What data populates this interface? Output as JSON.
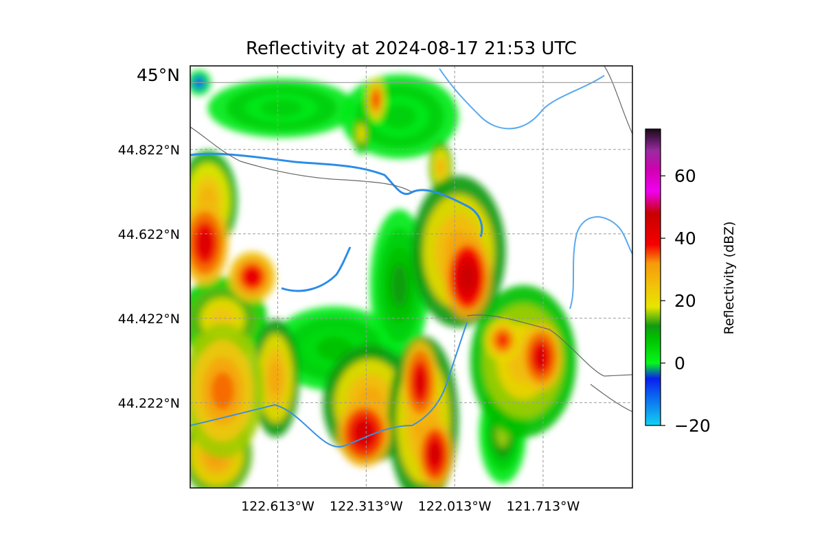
{
  "title": "Reflectivity at 2024-08-17 21:53 UTC",
  "map": {
    "lat_labels": [
      {
        "text": "45°N",
        "value": 45.0,
        "major": true
      },
      {
        "text": "44.822°N",
        "value": 44.822
      },
      {
        "text": "44.622°N",
        "value": 44.622
      },
      {
        "text": "44.422°N",
        "value": 44.422
      },
      {
        "text": "44.222°N",
        "value": 44.222
      }
    ],
    "lon_labels": [
      {
        "text": "122.613°W",
        "value": -122.613
      },
      {
        "text": "122.313°W",
        "value": -122.313
      },
      {
        "text": "122.013°W",
        "value": -122.013
      },
      {
        "text": "121.713°W",
        "value": -121.713
      }
    ],
    "extent": {
      "lon_min": -122.91,
      "lon_max": -121.41,
      "lat_min": 44.02,
      "lat_max": 45.02
    },
    "grid": true
  },
  "colorbar": {
    "label": "Reflectivity (dBZ)",
    "range": [
      -20,
      75
    ],
    "ticks": [
      {
        "text": "−20",
        "value": -20
      },
      {
        "text": "0",
        "value": 0
      },
      {
        "text": "20",
        "value": 20
      },
      {
        "text": "40",
        "value": 40
      },
      {
        "text": "60",
        "value": 60
      }
    ],
    "stops": [
      {
        "v": -20,
        "c": "#12d2f2"
      },
      {
        "v": -10,
        "c": "#0a5ef0"
      },
      {
        "v": -5,
        "c": "#0a1ef0"
      },
      {
        "v": 0,
        "c": "#06f71a"
      },
      {
        "v": 8,
        "c": "#00c000"
      },
      {
        "v": 12,
        "c": "#129b12"
      },
      {
        "v": 18,
        "c": "#e6e600"
      },
      {
        "v": 25,
        "c": "#f2c10a"
      },
      {
        "v": 32,
        "c": "#f59a0a"
      },
      {
        "v": 38,
        "c": "#f50000"
      },
      {
        "v": 48,
        "c": "#c80000"
      },
      {
        "v": 55,
        "c": "#f000f0"
      },
      {
        "v": 62,
        "c": "#d000b0"
      },
      {
        "v": 68,
        "c": "#9a2ba0"
      },
      {
        "v": 75,
        "c": "#1a0a1a"
      }
    ]
  },
  "reflectivity_cells": [
    {
      "lon": -122.86,
      "lat": 44.6,
      "dbz": 44,
      "rx": 0.08,
      "ry": 0.1
    },
    {
      "lon": -122.85,
      "lat": 44.7,
      "dbz": 28,
      "rx": 0.1,
      "ry": 0.12
    },
    {
      "lon": -122.7,
      "lat": 44.52,
      "dbz": 42,
      "rx": 0.08,
      "ry": 0.06
    },
    {
      "lon": -122.8,
      "lat": 44.42,
      "dbz": 24,
      "rx": 0.15,
      "ry": 0.1
    },
    {
      "lon": -122.8,
      "lat": 44.25,
      "dbz": 34,
      "rx": 0.14,
      "ry": 0.16
    },
    {
      "lon": -122.82,
      "lat": 44.1,
      "dbz": 32,
      "rx": 0.12,
      "ry": 0.1
    },
    {
      "lon": -122.62,
      "lat": 44.28,
      "dbz": 30,
      "rx": 0.08,
      "ry": 0.14
    },
    {
      "lon": -122.42,
      "lat": 44.35,
      "dbz": 8,
      "rx": 0.22,
      "ry": 0.1
    },
    {
      "lon": -122.32,
      "lat": 44.15,
      "dbz": 46,
      "rx": 0.09,
      "ry": 0.08
    },
    {
      "lon": -122.3,
      "lat": 44.22,
      "dbz": 30,
      "rx": 0.16,
      "ry": 0.14
    },
    {
      "lon": -122.13,
      "lat": 44.27,
      "dbz": 44,
      "rx": 0.06,
      "ry": 0.1
    },
    {
      "lon": -122.08,
      "lat": 44.1,
      "dbz": 46,
      "rx": 0.06,
      "ry": 0.08
    },
    {
      "lon": -122.12,
      "lat": 44.18,
      "dbz": 30,
      "rx": 0.12,
      "ry": 0.2
    },
    {
      "lon": -121.97,
      "lat": 44.52,
      "dbz": 48,
      "rx": 0.08,
      "ry": 0.1
    },
    {
      "lon": -122.0,
      "lat": 44.58,
      "dbz": 30,
      "rx": 0.16,
      "ry": 0.18
    },
    {
      "lon": -122.2,
      "lat": 44.5,
      "dbz": 12,
      "rx": 0.1,
      "ry": 0.18
    },
    {
      "lon": -121.72,
      "lat": 44.33,
      "dbz": 44,
      "rx": 0.07,
      "ry": 0.08
    },
    {
      "lon": -121.85,
      "lat": 44.37,
      "dbz": 38,
      "rx": 0.06,
      "ry": 0.05
    },
    {
      "lon": -121.78,
      "lat": 44.32,
      "dbz": 26,
      "rx": 0.18,
      "ry": 0.18
    },
    {
      "lon": -121.85,
      "lat": 44.15,
      "dbz": 16,
      "rx": 0.08,
      "ry": 0.12
    },
    {
      "lon": -122.06,
      "lat": 44.78,
      "dbz": 28,
      "rx": 0.04,
      "ry": 0.06
    },
    {
      "lon": -122.28,
      "lat": 44.94,
      "dbz": 38,
      "rx": 0.03,
      "ry": 0.05
    },
    {
      "lon": -122.33,
      "lat": 44.86,
      "dbz": 22,
      "rx": 0.03,
      "ry": 0.05
    },
    {
      "lon": -122.2,
      "lat": 44.9,
      "dbz": 6,
      "rx": 0.2,
      "ry": 0.1
    },
    {
      "lon": -122.6,
      "lat": 44.92,
      "dbz": 6,
      "rx": 0.25,
      "ry": 0.07
    },
    {
      "lon": -122.88,
      "lat": 44.98,
      "dbz": -8,
      "rx": 0.04,
      "ry": 0.03
    }
  ]
}
